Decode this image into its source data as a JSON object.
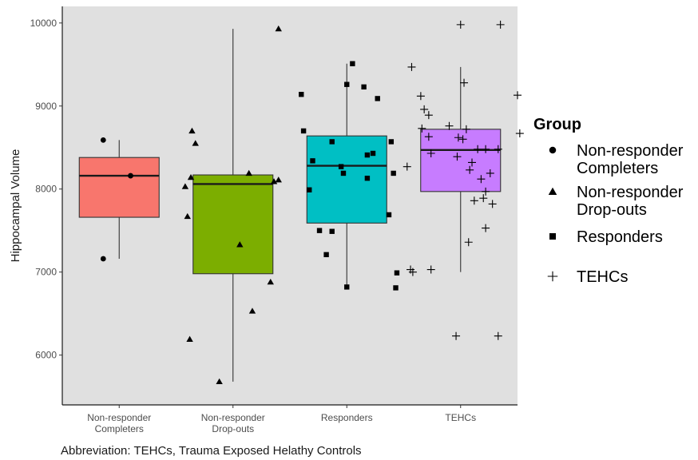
{
  "chart_data": {
    "type": "box",
    "ylabel": "Hippocampal Volume",
    "xlabel": "",
    "ylim": [
      5400,
      10200
    ],
    "yticks": [
      6000,
      7000,
      8000,
      9000,
      10000
    ],
    "categories": [
      {
        "lines": [
          "Non-responder",
          "Completers"
        ],
        "group": "Non-responder Completers"
      },
      {
        "lines": [
          "Non-responder",
          "Drop-outs"
        ],
        "group": "Non-responder Drop-outs"
      },
      {
        "lines": [
          "Responders"
        ],
        "group": "Responders"
      },
      {
        "lines": [
          "TEHCs"
        ],
        "group": "TEHCs"
      }
    ],
    "boxes": [
      {
        "group": "Non-responder Completers",
        "min": 7160,
        "q1": 7660,
        "median": 8160,
        "q3": 8380,
        "max": 8590,
        "color": "#F8766D"
      },
      {
        "group": "Non-responder Drop-outs",
        "min": 5680,
        "q1": 6980,
        "median": 8060,
        "q3": 8170,
        "max": 9930,
        "color": "#7CAE00"
      },
      {
        "group": "Responders",
        "min": 6820,
        "q1": 7590,
        "median": 8280,
        "q3": 8640,
        "max": 9510,
        "color": "#00BFC4"
      },
      {
        "group": "TEHCs",
        "min": 7000,
        "q1": 7970,
        "median": 8470,
        "q3": 8720,
        "max": 9470,
        "color": "#C77CFF"
      }
    ],
    "points": [
      {
        "group": "Non-responder Completers",
        "shape": "circle",
        "data": [
          [
            0.86,
            7160
          ],
          [
            0.86,
            8590
          ],
          [
            1.1,
            8160
          ]
        ]
      },
      {
        "group": "Non-responder Drop-outs",
        "shape": "triangle",
        "data": [
          [
            1.64,
            8700
          ],
          [
            1.67,
            8550
          ],
          [
            1.63,
            8140
          ],
          [
            1.58,
            8030
          ],
          [
            1.6,
            7670
          ],
          [
            1.62,
            6190
          ],
          [
            2.06,
            7330
          ],
          [
            2.14,
            8190
          ],
          [
            2.36,
            8090
          ],
          [
            2.4,
            8110
          ],
          [
            2.33,
            6880
          ],
          [
            2.17,
            6530
          ],
          [
            1.88,
            5680
          ],
          [
            2.4,
            9930
          ]
        ]
      },
      {
        "group": "Responders",
        "shape": "square",
        "data": [
          [
            2.6,
            9140
          ],
          [
            2.62,
            8700
          ],
          [
            2.7,
            8340
          ],
          [
            2.87,
            8570
          ],
          [
            3.05,
            9510
          ],
          [
            3.0,
            9260
          ],
          [
            3.15,
            9230
          ],
          [
            3.27,
            9090
          ],
          [
            3.39,
            8570
          ],
          [
            3.23,
            8430
          ],
          [
            3.18,
            8410
          ],
          [
            2.95,
            8270
          ],
          [
            3.18,
            8130
          ],
          [
            2.97,
            8190
          ],
          [
            3.41,
            8190
          ],
          [
            2.67,
            7990
          ],
          [
            2.87,
            7490
          ],
          [
            2.76,
            7500
          ],
          [
            2.82,
            7210
          ],
          [
            3.37,
            7690
          ],
          [
            3.44,
            6990
          ],
          [
            3.0,
            6820
          ],
          [
            3.43,
            6810
          ]
        ]
      },
      {
        "group": "TEHCs",
        "shape": "plus",
        "data": [
          [
            3.57,
            9470
          ],
          [
            3.65,
            9120
          ],
          [
            3.68,
            8960
          ],
          [
            3.72,
            8890
          ],
          [
            3.66,
            8730
          ],
          [
            3.72,
            8630
          ],
          [
            3.74,
            8430
          ],
          [
            3.9,
            8760
          ],
          [
            4.0,
            9980
          ],
          [
            4.35,
            9980
          ],
          [
            4.03,
            9280
          ],
          [
            4.5,
            9130
          ],
          [
            4.52,
            8670
          ],
          [
            4.05,
            8720
          ],
          [
            3.98,
            8620
          ],
          [
            4.02,
            8600
          ],
          [
            4.22,
            8480
          ],
          [
            4.33,
            8480
          ],
          [
            4.15,
            8480
          ],
          [
            3.97,
            8390
          ],
          [
            4.1,
            8320
          ],
          [
            4.08,
            8230
          ],
          [
            4.18,
            8120
          ],
          [
            4.22,
            7970
          ],
          [
            4.26,
            8190
          ],
          [
            4.2,
            7890
          ],
          [
            4.12,
            7860
          ],
          [
            4.28,
            7820
          ],
          [
            4.22,
            7530
          ],
          [
            4.07,
            7360
          ],
          [
            3.74,
            7030
          ],
          [
            3.56,
            7030
          ],
          [
            3.58,
            7000
          ],
          [
            3.53,
            8270
          ],
          [
            3.96,
            6230
          ],
          [
            4.33,
            6230
          ]
        ]
      }
    ],
    "grid": false,
    "legend_position": "right"
  },
  "legend": {
    "title": "Group",
    "items": [
      {
        "shape": "circle",
        "lines": [
          "Non-responder",
          "Completers"
        ]
      },
      {
        "shape": "triangle",
        "lines": [
          "Non-responder",
          "Drop-outs"
        ]
      },
      {
        "shape": "square",
        "lines": [
          "Responders"
        ]
      },
      {
        "shape": "plus",
        "lines": [
          "TEHCs"
        ]
      }
    ]
  },
  "footnote": "Abbreviation: TEHCs, Trauma Exposed Helathy Controls",
  "colors": {
    "panel": "#e0e0e0",
    "axis": "#1a1a1a",
    "tick_text": "#4d4d4d"
  }
}
